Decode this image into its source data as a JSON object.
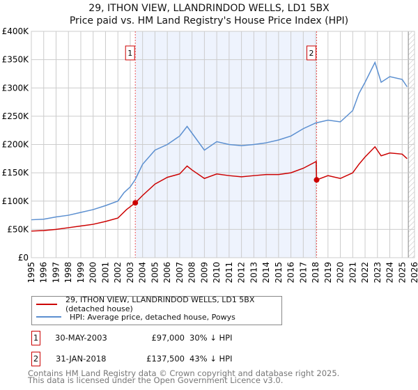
{
  "title_line1": "29, ITHON VIEW, LLANDRINDOD WELLS, LD1 5BX",
  "title_line2": "Price paid vs. HM Land Registry's House Price Index (HPI)",
  "colors": {
    "property": "#cc0000",
    "hpi": "#5b8fd0",
    "shade": "#eef3fd"
  },
  "chart_data": {
    "type": "line",
    "xlim": [
      1995,
      2026
    ],
    "ylim": [
      0,
      400000
    ],
    "yticks": [
      0,
      50000,
      100000,
      150000,
      200000,
      250000,
      300000,
      350000,
      400000
    ],
    "ytick_labels": [
      "£0",
      "£50K",
      "£100K",
      "£150K",
      "£200K",
      "£250K",
      "£300K",
      "£350K",
      "£400K"
    ],
    "xticks": [
      1995,
      1996,
      1997,
      1998,
      1999,
      2000,
      2001,
      2002,
      2003,
      2004,
      2005,
      2006,
      2007,
      2008,
      2009,
      2010,
      2011,
      2012,
      2013,
      2014,
      2015,
      2016,
      2017,
      2018,
      2019,
      2020,
      2021,
      2022,
      2023,
      2024,
      2025,
      2026
    ],
    "series": [
      {
        "name": "29, ITHON VIEW, LLANDRINDOD WELLS, LD1 5BX (detached house)",
        "color": "#cc0000",
        "x": [
          1995,
          1996,
          1997,
          1998,
          1999,
          2000,
          2001,
          2002,
          2002.7,
          2003.41,
          2004,
          2005,
          2006,
          2007,
          2007.6,
          2008,
          2009,
          2010,
          2011,
          2012,
          2013,
          2014,
          2015,
          2016,
          2017,
          2018.05,
          2018.08,
          2019,
          2020,
          2021,
          2021.5,
          2022,
          2022.8,
          2023.3,
          2024,
          2025,
          2025.4
        ],
        "y": [
          47000,
          48000,
          50000,
          53000,
          56000,
          59000,
          64000,
          70000,
          85000,
          97000,
          110000,
          130000,
          142000,
          148000,
          162000,
          155000,
          140000,
          148000,
          145000,
          143000,
          145000,
          147000,
          147000,
          150000,
          158000,
          170000,
          137500,
          145000,
          140000,
          150000,
          165000,
          178000,
          196000,
          180000,
          185000,
          183000,
          175000
        ]
      },
      {
        "name": "HPI: Average price, detached house, Powys",
        "color": "#5b8fd0",
        "x": [
          1995,
          1996,
          1997,
          1998,
          1999,
          2000,
          2001,
          2002,
          2002.5,
          2003,
          2003.4,
          2004,
          2005,
          2006,
          2007,
          2007.6,
          2008,
          2009,
          2010,
          2011,
          2012,
          2013,
          2014,
          2015,
          2016,
          2017,
          2018,
          2019,
          2020,
          2021,
          2021.5,
          2022,
          2022.8,
          2023.3,
          2024,
          2025,
          2025.4
        ],
        "y": [
          67000,
          68000,
          72000,
          75000,
          80000,
          85000,
          92000,
          100000,
          115000,
          125000,
          138000,
          165000,
          190000,
          200000,
          215000,
          232000,
          220000,
          190000,
          205000,
          200000,
          198000,
          200000,
          203000,
          208000,
          215000,
          228000,
          238000,
          243000,
          240000,
          260000,
          290000,
          310000,
          345000,
          310000,
          320000,
          315000,
          302000
        ]
      }
    ],
    "sales": [
      {
        "label": "1",
        "x": 2003.41,
        "y": 97000,
        "date": "30-MAY-2003",
        "price": "£97,000",
        "hpi_diff": "30% ↓ HPI"
      },
      {
        "label": "2",
        "x": 2018.08,
        "y": 137500,
        "date": "31-JAN-2018",
        "price": "£137,500",
        "hpi_diff": "43% ↓ HPI"
      }
    ],
    "hatch_from": 2025.5
  },
  "legend": {
    "property": "29, ITHON VIEW, LLANDRINDOD WELLS, LD1 5BX (detached house)",
    "hpi": "HPI: Average price, detached house, Powys"
  },
  "footer": {
    "line1": "Contains HM Land Registry data © Crown copyright and database right 2025.",
    "line2": "This data is licensed under the Open Government Licence v3.0."
  }
}
